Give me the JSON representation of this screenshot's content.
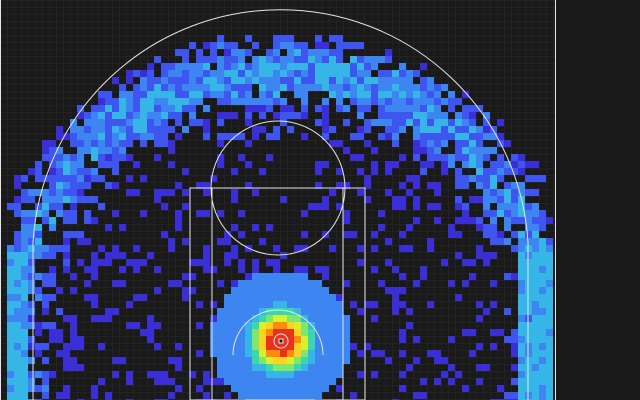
{
  "chart_data": {
    "type": "heatmap",
    "title": "",
    "xlabel": "",
    "ylabel": "",
    "description_of_encoding": "",
    "colors": {
      "background": "#1a1a1a",
      "grid": "#2b2b2b",
      "court_lines": "#e6e6e6",
      "colormap": [
        "#3a2fd6",
        "#3f55f0",
        "#3d86f2",
        "#35b6e6",
        "#3ad6b0",
        "#7ee86a",
        "#d9f02c",
        "#ffd21f",
        "#ff8a12",
        "#e8331a"
      ]
    },
    "court": {
      "elements": [
        "three-point-arc",
        "corner-three-lines",
        "paint-outer",
        "paint-inner",
        "free-throw-circle",
        "restricted-area",
        "hoop"
      ]
    },
    "density_model": {
      "hotspot": "rim",
      "secondary": "three-point-line",
      "tertiary": "corner-threes",
      "sparse": "mid-range"
    },
    "legend": "none",
    "grid": true
  }
}
